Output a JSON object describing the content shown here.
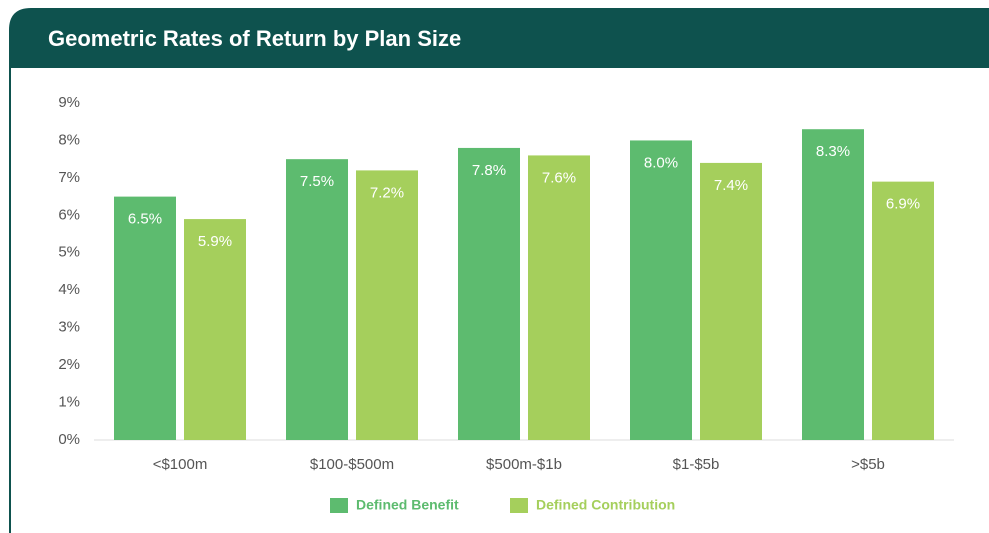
{
  "chart_data": {
    "type": "bar",
    "title": "Geometric Rates of Return by Plan Size",
    "categories": [
      "<$100m",
      "$100-$500m",
      "$500m-$1b",
      "$1-$5b",
      ">$5b"
    ],
    "series": [
      {
        "name": "Defined Benefit",
        "color": "#5dbb6f",
        "values": [
          6.5,
          7.5,
          7.8,
          8.0,
          8.3
        ],
        "value_labels": [
          "6.5%",
          "7.5%",
          "7.8%",
          "8.0%",
          "8.3%"
        ]
      },
      {
        "name": "Defined Contribution",
        "color": "#a5cf5c",
        "values": [
          5.9,
          7.2,
          7.6,
          7.4,
          6.9
        ],
        "value_labels": [
          "5.9%",
          "7.2%",
          "7.6%",
          "7.4%",
          "6.9%"
        ]
      }
    ],
    "ylim": [
      0,
      9
    ],
    "yticks": [
      {
        "value": 0,
        "label": "0%"
      },
      {
        "value": 1,
        "label": "1%"
      },
      {
        "value": 2,
        "label": "2%"
      },
      {
        "value": 3,
        "label": "3%"
      },
      {
        "value": 4,
        "label": "4%"
      },
      {
        "value": 5,
        "label": "5%"
      },
      {
        "value": 6,
        "label": "6%"
      },
      {
        "value": 7,
        "label": "7%"
      },
      {
        "value": 8,
        "label": "8%"
      },
      {
        "value": 9,
        "label": "9%"
      }
    ],
    "legend": "bottom"
  }
}
